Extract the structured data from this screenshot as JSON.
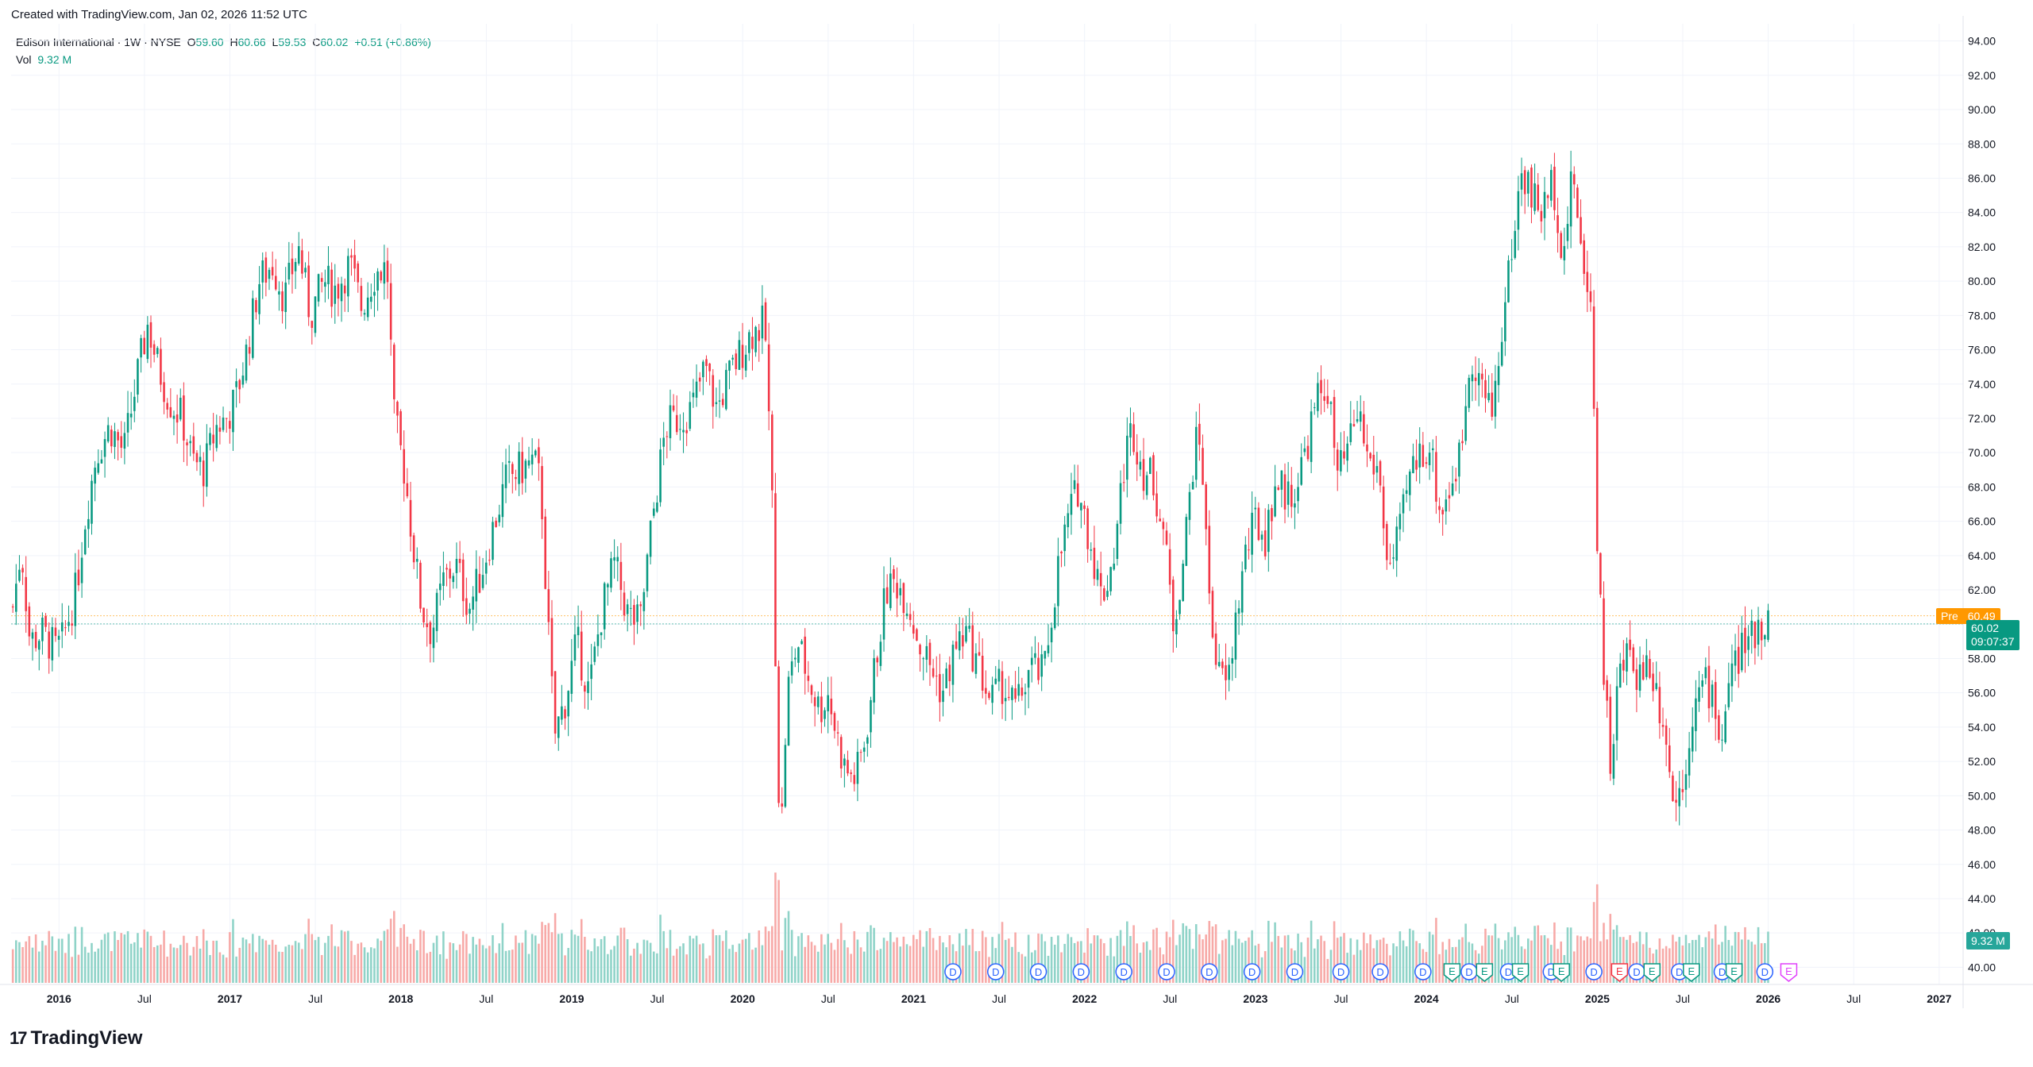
{
  "header": {
    "created": "Created with TradingView.com, Jan 02, 2026 11:52 UTC"
  },
  "legend": {
    "symbol": "Edison International · 1W · NYSE",
    "o_label": "O",
    "o_value": "59.60",
    "h_label": "H",
    "h_value": "60.66",
    "l_label": "L",
    "l_value": "59.53",
    "c_label": "C",
    "c_value": "60.02",
    "change": "+0.51 (+0.86%)",
    "vol_label": "Vol",
    "vol_value": "9.32 M"
  },
  "price_tags": {
    "pre_label": "Pre",
    "pre_value": "60.49",
    "last_value": "60.02",
    "countdown": "09:07:37",
    "volume_tag": "9.32 M"
  },
  "footer": {
    "brand": "TradingView",
    "brand_mark": "17"
  },
  "colors": {
    "up": "#089981",
    "down": "#f23645",
    "vol_up": "#8fd3c8",
    "vol_down": "#f7a9a7",
    "pre": "#ff9800",
    "grid": "#f0f3fa",
    "event_d": "#2962ff",
    "event_e_up": "#089981",
    "event_e_down": "#f23645",
    "event_e_future": "#e040fb"
  },
  "chart_data": {
    "type": "candlestick",
    "interval": "1W",
    "ylim": [
      39,
      95
    ],
    "y_ticks": [
      "40.00",
      "42.00",
      "44.00",
      "46.00",
      "48.00",
      "50.00",
      "52.00",
      "54.00",
      "56.00",
      "58.00",
      "60.00",
      "62.00",
      "64.00",
      "66.00",
      "68.00",
      "70.00",
      "72.00",
      "74.00",
      "76.00",
      "78.00",
      "80.00",
      "82.00",
      "84.00",
      "86.00",
      "88.00",
      "90.00",
      "92.00",
      "94.00"
    ],
    "x_ticks": [
      {
        "label": "2016",
        "t": 2016.0,
        "bold": true
      },
      {
        "label": "Jul",
        "t": 2016.5,
        "bold": false
      },
      {
        "label": "2017",
        "t": 2017.0,
        "bold": true
      },
      {
        "label": "Jul",
        "t": 2017.5,
        "bold": false
      },
      {
        "label": "2018",
        "t": 2018.0,
        "bold": true
      },
      {
        "label": "Jul",
        "t": 2018.5,
        "bold": false
      },
      {
        "label": "2019",
        "t": 2019.0,
        "bold": true
      },
      {
        "label": "Jul",
        "t": 2019.5,
        "bold": false
      },
      {
        "label": "2020",
        "t": 2020.0,
        "bold": true
      },
      {
        "label": "Jul",
        "t": 2020.5,
        "bold": false
      },
      {
        "label": "2021",
        "t": 2021.0,
        "bold": true
      },
      {
        "label": "Jul",
        "t": 2021.5,
        "bold": false
      },
      {
        "label": "2022",
        "t": 2022.0,
        "bold": true
      },
      {
        "label": "Jul",
        "t": 2022.5,
        "bold": false
      },
      {
        "label": "2023",
        "t": 2023.0,
        "bold": true
      },
      {
        "label": "Jul",
        "t": 2023.5,
        "bold": false
      },
      {
        "label": "2024",
        "t": 2024.0,
        "bold": true
      },
      {
        "label": "Jul",
        "t": 2024.5,
        "bold": false
      },
      {
        "label": "2025",
        "t": 2025.0,
        "bold": true
      },
      {
        "label": "Jul",
        "t": 2025.5,
        "bold": false
      },
      {
        "label": "2026",
        "t": 2026.0,
        "bold": true
      },
      {
        "label": "Jul",
        "t": 2026.5,
        "bold": false
      },
      {
        "label": "2027",
        "t": 2027.0,
        "bold": true
      }
    ],
    "price_path": [
      [
        2015.73,
        61.0
      ],
      [
        2015.78,
        64.5
      ],
      [
        2015.83,
        59.0
      ],
      [
        2015.9,
        59.5
      ],
      [
        2015.98,
        58.5
      ],
      [
        2016.02,
        59.0
      ],
      [
        2016.1,
        62.0
      ],
      [
        2016.15,
        66.0
      ],
      [
        2016.22,
        70.0
      ],
      [
        2016.3,
        71.5
      ],
      [
        2016.38,
        70.0
      ],
      [
        2016.45,
        74.0
      ],
      [
        2016.52,
        77.5
      ],
      [
        2016.58,
        75.0
      ],
      [
        2016.65,
        73.0
      ],
      [
        2016.72,
        72.0
      ],
      [
        2016.78,
        69.5
      ],
      [
        2016.85,
        69.0
      ],
      [
        2016.92,
        71.5
      ],
      [
        2016.98,
        72.0
      ],
      [
        2017.03,
        73.0
      ],
      [
        2017.1,
        76.0
      ],
      [
        2017.17,
        80.0
      ],
      [
        2017.25,
        81.0
      ],
      [
        2017.32,
        79.0
      ],
      [
        2017.4,
        82.0
      ],
      [
        2017.47,
        78.0
      ],
      [
        2017.55,
        80.0
      ],
      [
        2017.62,
        79.5
      ],
      [
        2017.7,
        81.0
      ],
      [
        2017.77,
        78.5
      ],
      [
        2017.85,
        80.5
      ],
      [
        2017.92,
        80.8
      ],
      [
        2017.96,
        72.0
      ],
      [
        2018.02,
        69.0
      ],
      [
        2018.08,
        64.0
      ],
      [
        2018.12,
        61.0
      ],
      [
        2018.18,
        59.5
      ],
      [
        2018.25,
        62.5
      ],
      [
        2018.32,
        63.5
      ],
      [
        2018.4,
        61.0
      ],
      [
        2018.47,
        63.0
      ],
      [
        2018.55,
        66.0
      ],
      [
        2018.62,
        68.5
      ],
      [
        2018.7,
        69.0
      ],
      [
        2018.78,
        69.5
      ],
      [
        2018.82,
        68.0
      ],
      [
        2018.86,
        60.0
      ],
      [
        2018.9,
        53.5
      ],
      [
        2018.96,
        55.5
      ],
      [
        2019.03,
        59.0
      ],
      [
        2019.1,
        56.0
      ],
      [
        2019.18,
        61.0
      ],
      [
        2019.25,
        63.5
      ],
      [
        2019.33,
        60.5
      ],
      [
        2019.4,
        60.0
      ],
      [
        2019.47,
        66.0
      ],
      [
        2019.55,
        71.5
      ],
      [
        2019.62,
        72.0
      ],
      [
        2019.7,
        72.5
      ],
      [
        2019.78,
        75.0
      ],
      [
        2019.85,
        72.5
      ],
      [
        2019.9,
        74.0
      ],
      [
        2019.97,
        75.5
      ],
      [
        2020.05,
        77.0
      ],
      [
        2020.13,
        77.5
      ],
      [
        2020.17,
        68.0
      ],
      [
        2020.2,
        55.0
      ],
      [
        2020.22,
        46.5
      ],
      [
        2020.26,
        56.0
      ],
      [
        2020.32,
        59.0
      ],
      [
        2020.38,
        57.0
      ],
      [
        2020.45,
        55.0
      ],
      [
        2020.5,
        56.0
      ],
      [
        2020.55,
        53.5
      ],
      [
        2020.6,
        51.5
      ],
      [
        2020.66,
        51.0
      ],
      [
        2020.72,
        53.5
      ],
      [
        2020.78,
        58.0
      ],
      [
        2020.84,
        62.0
      ],
      [
        2020.9,
        62.5
      ],
      [
        2020.96,
        61.5
      ],
      [
        2021.03,
        59.0
      ],
      [
        2021.1,
        57.5
      ],
      [
        2021.17,
        56.0
      ],
      [
        2021.24,
        58.5
      ],
      [
        2021.3,
        59.5
      ],
      [
        2021.38,
        57.5
      ],
      [
        2021.45,
        55.5
      ],
      [
        2021.52,
        56.5
      ],
      [
        2021.6,
        55.0
      ],
      [
        2021.68,
        57.5
      ],
      [
        2021.76,
        57.0
      ],
      [
        2021.84,
        63.0
      ],
      [
        2021.9,
        66.0
      ],
      [
        2021.96,
        68.0
      ],
      [
        2022.03,
        65.0
      ],
      [
        2022.1,
        61.5
      ],
      [
        2022.17,
        64.0
      ],
      [
        2022.24,
        70.0
      ],
      [
        2022.28,
        71.5
      ],
      [
        2022.34,
        69.0
      ],
      [
        2022.4,
        68.5
      ],
      [
        2022.46,
        65.5
      ],
      [
        2022.52,
        60.0
      ],
      [
        2022.58,
        64.0
      ],
      [
        2022.64,
        70.0
      ],
      [
        2022.68,
        71.0
      ],
      [
        2022.72,
        63.0
      ],
      [
        2022.78,
        57.0
      ],
      [
        2022.84,
        56.5
      ],
      [
        2022.88,
        60.0
      ],
      [
        2022.94,
        64.0
      ],
      [
        2023.0,
        66.0
      ],
      [
        2023.06,
        65.0
      ],
      [
        2023.12,
        68.5
      ],
      [
        2023.18,
        67.5
      ],
      [
        2023.24,
        68.0
      ],
      [
        2023.3,
        70.5
      ],
      [
        2023.36,
        73.0
      ],
      [
        2023.42,
        74.0
      ],
      [
        2023.48,
        68.5
      ],
      [
        2023.54,
        70.0
      ],
      [
        2023.6,
        72.5
      ],
      [
        2023.66,
        69.5
      ],
      [
        2023.72,
        69.0
      ],
      [
        2023.78,
        63.0
      ],
      [
        2023.84,
        65.0
      ],
      [
        2023.9,
        68.5
      ],
      [
        2023.96,
        70.0
      ],
      [
        2024.02,
        70.5
      ],
      [
        2024.08,
        66.5
      ],
      [
        2024.14,
        68.0
      ],
      [
        2024.2,
        70.0
      ],
      [
        2024.26,
        76.0
      ],
      [
        2024.32,
        74.0
      ],
      [
        2024.38,
        72.0
      ],
      [
        2024.44,
        77.0
      ],
      [
        2024.5,
        82.0
      ],
      [
        2024.56,
        86.5
      ],
      [
        2024.62,
        85.0
      ],
      [
        2024.68,
        84.0
      ],
      [
        2024.74,
        86.0
      ],
      [
        2024.8,
        81.5
      ],
      [
        2024.86,
        86.5
      ],
      [
        2024.92,
        80.0
      ],
      [
        2024.96,
        79.8
      ],
      [
        2025.0,
        65.0
      ],
      [
        2025.04,
        57.0
      ],
      [
        2025.08,
        51.5
      ],
      [
        2025.12,
        56.5
      ],
      [
        2025.18,
        58.5
      ],
      [
        2025.24,
        57.0
      ],
      [
        2025.3,
        58.0
      ],
      [
        2025.36,
        55.5
      ],
      [
        2025.4,
        54.0
      ],
      [
        2025.44,
        49.5
      ],
      [
        2025.5,
        51.0
      ],
      [
        2025.56,
        55.0
      ],
      [
        2025.62,
        56.5
      ],
      [
        2025.68,
        56.0
      ],
      [
        2025.72,
        53.0
      ],
      [
        2025.78,
        57.0
      ],
      [
        2025.84,
        58.5
      ],
      [
        2025.9,
        59.0
      ],
      [
        2025.95,
        60.3
      ],
      [
        2026.0,
        60.02
      ]
    ],
    "events": [
      {
        "type": "D",
        "t": 2021.23
      },
      {
        "type": "D",
        "t": 2021.48
      },
      {
        "type": "D",
        "t": 2021.73
      },
      {
        "type": "D",
        "t": 2021.98
      },
      {
        "type": "D",
        "t": 2022.23
      },
      {
        "type": "D",
        "t": 2022.48
      },
      {
        "type": "D",
        "t": 2022.73
      },
      {
        "type": "D",
        "t": 2022.98
      },
      {
        "type": "D",
        "t": 2023.23
      },
      {
        "type": "D",
        "t": 2023.5
      },
      {
        "type": "D",
        "t": 2023.73
      },
      {
        "type": "D",
        "t": 2023.98
      },
      {
        "type": "E",
        "t": 2024.15
      },
      {
        "type": "D",
        "t": 2024.25
      },
      {
        "type": "E",
        "t": 2024.34
      },
      {
        "type": "D",
        "t": 2024.48
      },
      {
        "type": "E",
        "t": 2024.55
      },
      {
        "type": "D",
        "t": 2024.73
      },
      {
        "type": "E",
        "t": 2024.79
      },
      {
        "type": "D",
        "t": 2024.98
      },
      {
        "type": "E-",
        "t": 2025.13
      },
      {
        "type": "D",
        "t": 2025.23
      },
      {
        "type": "E",
        "t": 2025.32
      },
      {
        "type": "D",
        "t": 2025.48
      },
      {
        "type": "E",
        "t": 2025.55
      },
      {
        "type": "D",
        "t": 2025.73
      },
      {
        "type": "E",
        "t": 2025.8
      },
      {
        "type": "D",
        "t": 2025.98
      },
      {
        "type": "E*",
        "t": 2026.12
      }
    ]
  }
}
